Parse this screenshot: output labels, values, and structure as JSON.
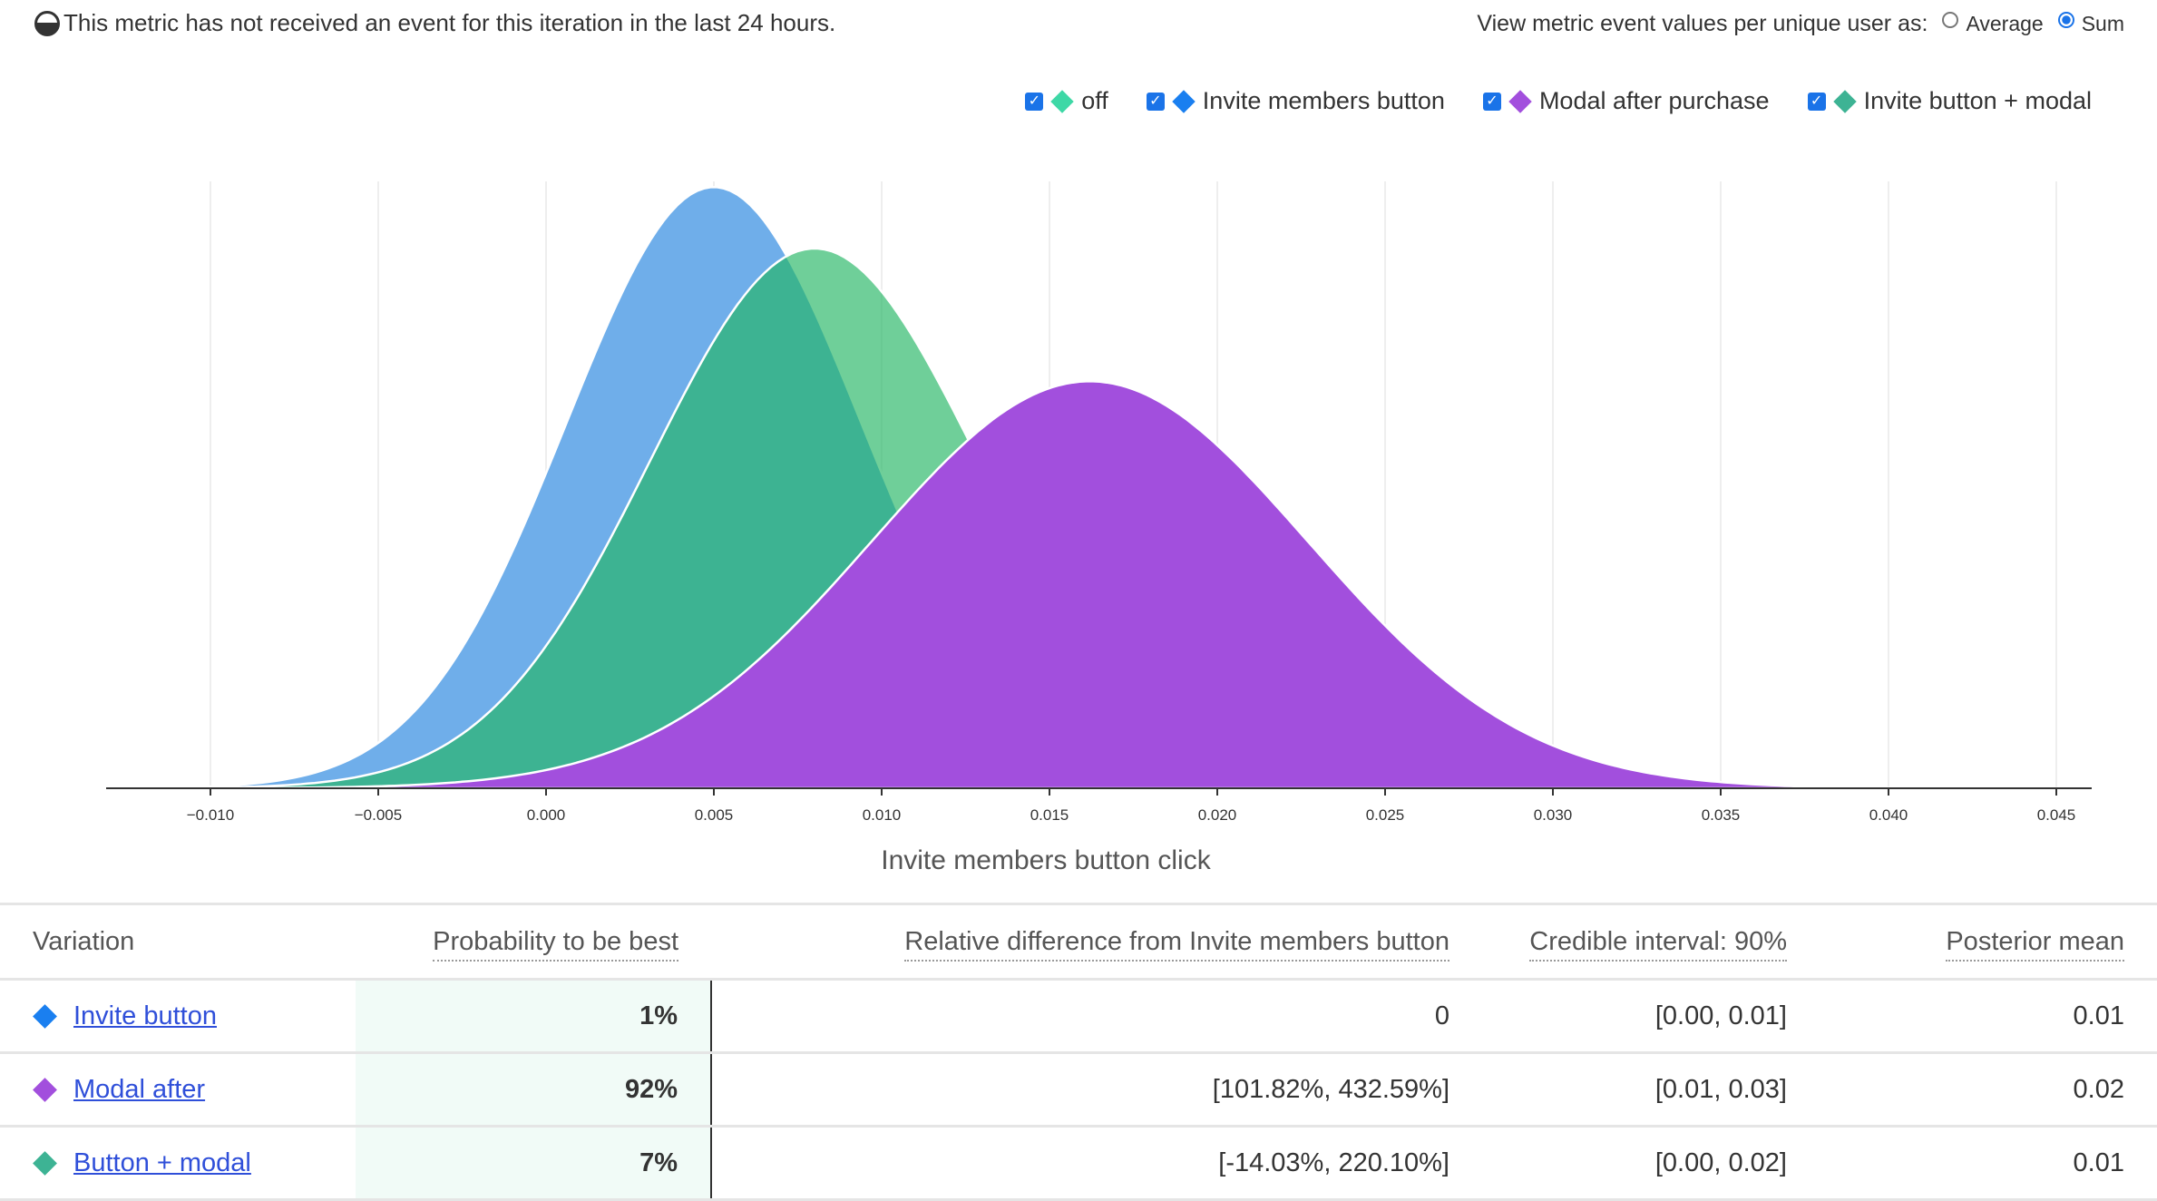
{
  "notice": {
    "icon": "half-filled-circle-icon",
    "text": "This metric has not received an event for this iteration in the last 24 hours."
  },
  "view_toggle": {
    "label": "View metric event values per unique user as:",
    "options": [
      "Average",
      "Sum"
    ],
    "selected": "Sum"
  },
  "colors": {
    "off": "#3ed8a6",
    "invite_members_button": "#1a7ff0",
    "modal_after_purchase": "#a24fdd",
    "invite_button_modal": "#3db394",
    "checkbox": "#1a73e8",
    "link": "#2f4fd9"
  },
  "legend": [
    {
      "label": "off",
      "checked": true,
      "color": "#3ed8a6"
    },
    {
      "label": "Invite members button",
      "checked": true,
      "color": "#1a7ff0"
    },
    {
      "label": "Modal after purchase",
      "checked": true,
      "color": "#a24fdd"
    },
    {
      "label": "Invite button + modal",
      "checked": true,
      "color": "#3db394"
    }
  ],
  "chart_data": {
    "type": "area",
    "xlabel": "Invite members button click",
    "xlim": [
      -0.0131,
      0.0465
    ],
    "xticks": [
      "-0.010",
      "-0.005",
      "0.000",
      "0.005",
      "0.010",
      "0.015",
      "0.020",
      "0.025",
      "0.030",
      "0.035",
      "0.040",
      "0.045"
    ],
    "grid": "vertical",
    "legend_position": "top-right",
    "series": [
      {
        "name": "Invite members button",
        "distribution": "normal",
        "peak_x": 0.005,
        "sd": 0.0044,
        "color": "#6faeea"
      },
      {
        "name": "Invite button + modal",
        "distribution": "normal",
        "peak_x": 0.008,
        "sd": 0.0049,
        "color": "rgba(34,181,99,0.65)"
      },
      {
        "name": "Modal after purchase",
        "distribution": "normal",
        "peak_x": 0.0162,
        "sd": 0.0065,
        "color": "#a24fdd"
      }
    ]
  },
  "table": {
    "headers": [
      "Variation",
      "Probability to be best",
      "Relative difference from Invite members button",
      "Credible interval: 90%",
      "Posterior mean"
    ],
    "rows": [
      {
        "variation": "Invite button",
        "color": "#1a7ff0",
        "prob": "1%",
        "rel": "0",
        "ci": "[0.00, 0.01]",
        "mean": "0.01"
      },
      {
        "variation": "Modal after",
        "color": "#a24fdd",
        "prob": "92%",
        "rel": "[101.82%, 432.59%]",
        "ci": "[0.01, 0.03]",
        "mean": "0.02"
      },
      {
        "variation": "Button + modal",
        "color": "#3db394",
        "prob": "7%",
        "rel": "[-14.03%, 220.10%]",
        "ci": "[0.00, 0.02]",
        "mean": "0.01"
      }
    ]
  }
}
